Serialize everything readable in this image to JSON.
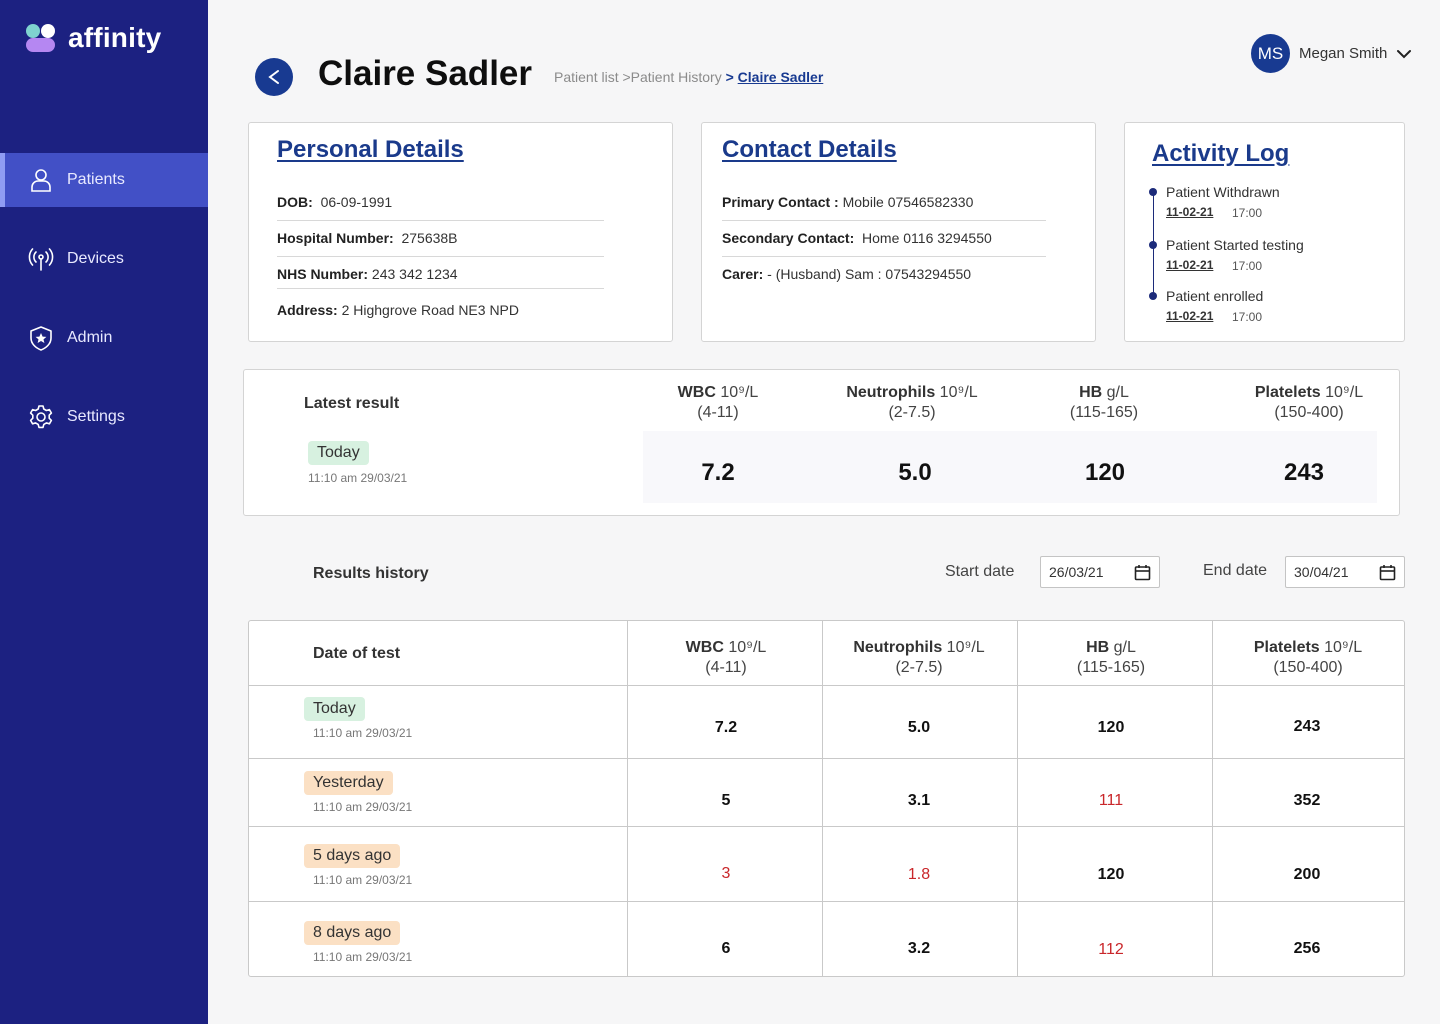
{
  "app": {
    "name": "affinity"
  },
  "sidebar": {
    "items": [
      {
        "label": "Patients",
        "icon": "person-icon",
        "active": true
      },
      {
        "label": "Devices",
        "icon": "antenna-icon",
        "active": false
      },
      {
        "label": "Admin",
        "icon": "shield-star-icon",
        "active": false
      },
      {
        "label": "Settings",
        "icon": "gear-icon",
        "active": false
      }
    ]
  },
  "header": {
    "title": "Claire Sadler",
    "back_label": "<",
    "breadcrumb": {
      "part1": "Patient list >",
      "part2": "Patient History ",
      "sep": ">",
      "current": "Claire Sadler"
    },
    "user": {
      "initials": "MS",
      "name": "Megan Smith"
    }
  },
  "personal": {
    "title": "Personal Details",
    "dob_label": "DOB:",
    "dob": "06-09-1991",
    "hospital_label": "Hospital Number:",
    "hospital": "275638B",
    "nhs_label": "NHS Number:",
    "nhs": "243 342 1234",
    "address_label": "Address:",
    "address": "2 Highgrove Road NE3 NPD"
  },
  "contact": {
    "title": "Contact Details",
    "primary_label": "Primary Contact :",
    "primary": "Mobile 07546582330",
    "secondary_label": "Secondary Contact:",
    "secondary": "Home 0116 3294550",
    "carer_label": "Carer:",
    "carer": "- (Husband) Sam : 07543294550"
  },
  "activity": {
    "title": "Activity Log",
    "entries": [
      {
        "title": "Patient Withdrawn",
        "date": "11-02-21",
        "time": "17:00"
      },
      {
        "title": "Patient Started testing",
        "date": "11-02-21",
        "time": "17:00"
      },
      {
        "title": "Patient enrolled",
        "date": "11-02-21",
        "time": "17:00"
      }
    ]
  },
  "columns": [
    {
      "name": "WBC",
      "unit": " 10⁹/L",
      "range": "(4-11)"
    },
    {
      "name": "Neutrophils",
      "unit": " 10⁹/L",
      "range": "(2-7.5)"
    },
    {
      "name": "HB",
      "unit": " g/L",
      "range": "(115-165)"
    },
    {
      "name": "Platelets",
      "unit": " 10⁹/L",
      "range": "(150-400)"
    }
  ],
  "latest": {
    "label": "Latest result",
    "badge": "Today",
    "stamp": "11:10 am  29/03/21",
    "values": [
      "7.2",
      "5.0",
      "120",
      "243"
    ]
  },
  "history": {
    "label": "Results history",
    "start_label": "Start date",
    "start_value": "26/03/21",
    "end_label": "End date",
    "end_value": "30/04/21",
    "date_col": "Date of test",
    "rows": [
      {
        "badge": "Today",
        "badge_color": "green",
        "stamp": "11:10 am  29/03/21",
        "values": [
          "7.2",
          "5.0",
          "120",
          "243"
        ],
        "flags": [
          false,
          false,
          false,
          false
        ]
      },
      {
        "badge": "Yesterday",
        "badge_color": "orange",
        "stamp": "11:10 am  29/03/21",
        "values": [
          "5",
          "3.1",
          "111",
          "352"
        ],
        "flags": [
          false,
          false,
          true,
          false
        ]
      },
      {
        "badge": "5 days ago",
        "badge_color": "orange",
        "stamp": "11:10 am  29/03/21",
        "values": [
          "3",
          "1.8",
          "120",
          "200"
        ],
        "flags": [
          true,
          true,
          false,
          false
        ]
      },
      {
        "badge": "8 days ago",
        "badge_color": "orange",
        "stamp": "11:10 am  29/03/21",
        "values": [
          "6",
          "3.2",
          "112",
          "256"
        ],
        "flags": [
          false,
          false,
          true,
          false
        ]
      }
    ]
  },
  "colors": {
    "sidebar": "#1c2181",
    "active": "#4250c6",
    "accent": "#183a91",
    "alert": "#c9262a"
  }
}
